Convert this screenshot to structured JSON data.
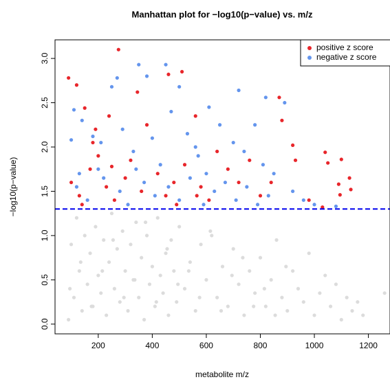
{
  "chart_data": {
    "type": "scatter",
    "title": "Manhattan plot for −log10(p−value) vs. m/z",
    "x_label": "metabolite m/z",
    "y_label": "−log10(p−value)",
    "xlim": [
      40,
      1280
    ],
    "ylim": [
      -0.11,
      3.21
    ],
    "xticks": [
      200,
      400,
      600,
      800,
      1000,
      1200
    ],
    "yticks": [
      {
        "value": 0,
        "label": "0.0"
      },
      0.5,
      {
        "value": 1,
        "label": "1.0"
      },
      1.5,
      {
        "value": 2,
        "label": "2.0"
      },
      2.5,
      {
        "value": 3,
        "label": "3.0"
      }
    ],
    "hline": 1.3,
    "hline_color": "#0000ee",
    "legend": "top-right",
    "series": [
      {
        "color": "#dcdcdc",
        "x": [
          90,
          100,
          110,
          120,
          130,
          140,
          150,
          160,
          170,
          180,
          190,
          200,
          210,
          220,
          230,
          240,
          250,
          260,
          270,
          280,
          290,
          300,
          310,
          320,
          330,
          340,
          350,
          360,
          370,
          380,
          390,
          400,
          410,
          420,
          430,
          440,
          450,
          460,
          470,
          480,
          490,
          500,
          520,
          540,
          560,
          580,
          600,
          620,
          640,
          660,
          680,
          700,
          720,
          740,
          760,
          780,
          800,
          820,
          840,
          860,
          880,
          900,
          920,
          940,
          960,
          980,
          1000,
          1020,
          1040,
          1060,
          1080,
          1100,
          1120,
          1140,
          1160,
          1180,
          1260,
          95,
          135,
          175,
          215,
          255,
          295,
          335,
          375,
          415,
          455,
          495,
          535,
          575,
          615,
          655,
          695,
          735,
          775,
          815,
          855,
          895
        ],
        "values": [
          0.05,
          0.9,
          0.3,
          1.2,
          0.6,
          0.15,
          1.0,
          0.45,
          0.8,
          0.2,
          1.1,
          0.55,
          0.35,
          0.95,
          0.1,
          0.7,
          1.25,
          0.4,
          0.85,
          0.25,
          1.05,
          0.6,
          0.15,
          0.9,
          0.5,
          1.15,
          0.3,
          0.75,
          0.05,
          1.0,
          0.45,
          0.65,
          0.2,
          1.2,
          0.55,
          0.35,
          0.8,
          0.1,
          0.95,
          0.6,
          0.25,
          1.1,
          0.4,
          0.7,
          0.15,
          0.9,
          0.5,
          1.0,
          0.3,
          0.65,
          0.2,
          0.85,
          0.45,
          0.1,
          0.6,
          0.35,
          0.75,
          0.2,
          0.5,
          0.95,
          0.3,
          0.15,
          0.6,
          0.4,
          0.25,
          0.8,
          0.1,
          0.35,
          0.55,
          0.2,
          0.45,
          0.05,
          0.3,
          0.15,
          0.25,
          0.1,
          0.35,
          0.4,
          0.7,
          0.2,
          0.6,
          0.95,
          0.3,
          0.5,
          1.15,
          0.25,
          0.85,
          0.45,
          0.6,
          0.3,
          1.05,
          0.15,
          0.55,
          0.75,
          0.2,
          0.4,
          0.1,
          0.65
        ]
      },
      {
        "name": "positive z score",
        "color": "#e8262b",
        "x": [
          90,
          120,
          275,
          460,
          510,
          345,
          870,
          150,
          190,
          240,
          200,
          100,
          130,
          170,
          230,
          260,
          300,
          320,
          360,
          380,
          420,
          450,
          480,
          520,
          560,
          580,
          610,
          640,
          680,
          720,
          760,
          800,
          840,
          880,
          920,
          930,
          980,
          1040,
          1050,
          1090,
          1095,
          1130,
          1135,
          1100,
          1030,
          565,
          490,
          250,
          180,
          140
        ],
        "values": [
          2.78,
          2.7,
          3.1,
          2.82,
          2.85,
          2.62,
          2.56,
          2.44,
          2.2,
          2.35,
          1.9,
          1.6,
          1.45,
          1.75,
          1.55,
          1.4,
          1.65,
          1.85,
          1.5,
          2.25,
          1.7,
          1.45,
          1.6,
          1.8,
          2.35,
          1.55,
          1.4,
          1.95,
          1.75,
          1.6,
          1.85,
          1.45,
          1.6,
          2.3,
          2.02,
          1.85,
          1.4,
          1.94,
          1.82,
          1.58,
          1.46,
          1.65,
          1.52,
          1.86,
          1.32,
          1.45,
          1.35,
          1.78,
          2.05,
          1.35
        ]
      },
      {
        "name": "negative z score",
        "color": "#6495ed",
        "x": [
          110,
          270,
          350,
          450,
          380,
          250,
          500,
          720,
          820,
          890,
          610,
          180,
          100,
          140,
          210,
          290,
          330,
          400,
          430,
          470,
          530,
          570,
          600,
          650,
          700,
          740,
          780,
          810,
          850,
          120,
          160,
          220,
          280,
          310,
          370,
          410,
          460,
          500,
          540,
          590,
          630,
          670,
          710,
          750,
          790,
          830,
          920,
          960,
          1000,
          1080,
          130,
          200,
          340,
          560
        ],
        "values": [
          2.42,
          2.78,
          2.93,
          2.93,
          2.8,
          2.68,
          2.68,
          2.64,
          2.56,
          2.5,
          2.45,
          2.12,
          2.08,
          2.3,
          2.05,
          2.2,
          1.95,
          2.1,
          1.8,
          2.4,
          2.15,
          1.9,
          1.7,
          2.25,
          2.05,
          1.95,
          2.25,
          1.8,
          1.7,
          1.55,
          1.4,
          1.65,
          1.5,
          1.35,
          1.6,
          1.45,
          1.55,
          1.4,
          1.65,
          1.35,
          1.5,
          1.6,
          1.4,
          1.55,
          1.35,
          1.45,
          1.5,
          1.4,
          1.35,
          1.33,
          1.7,
          1.75,
          1.75,
          2.0
        ]
      }
    ]
  }
}
